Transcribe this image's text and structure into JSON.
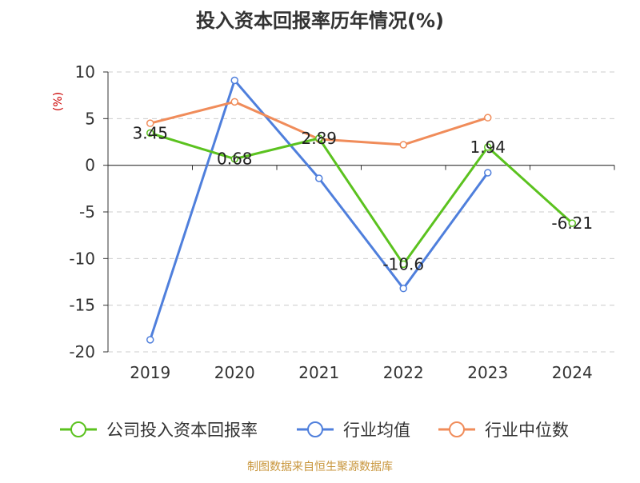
{
  "chart_data": {
    "type": "line",
    "title": "投入资本回报率历年情况(%)",
    "ylabel": "(%)",
    "xlabel": "",
    "ylim": [
      -20,
      10
    ],
    "yticks": [
      10,
      5,
      0,
      -5,
      -10,
      -15,
      -20
    ],
    "categories": [
      "2019",
      "2020",
      "2021",
      "2022",
      "2023",
      "2024"
    ],
    "grid": true,
    "legend_position": "bottom",
    "series": [
      {
        "name": "公司投入资本回报率",
        "color": "#5bc21f",
        "values": [
          3.45,
          0.68,
          2.89,
          -10.6,
          1.94,
          -6.21
        ],
        "labels": [
          "3.45",
          "0.68",
          "2.89",
          "-10.6",
          "1.94",
          "-6.21"
        ]
      },
      {
        "name": "行业均值",
        "color": "#4f7fdc",
        "values": [
          -18.7,
          9.1,
          -1.4,
          -13.2,
          -0.8,
          null
        ]
      },
      {
        "name": "行业中位数",
        "color": "#f08c5a",
        "values": [
          4.5,
          6.8,
          2.8,
          2.2,
          5.1,
          null
        ]
      }
    ],
    "source": "制图数据来自恒生聚源数据库",
    "title_color": "#333333",
    "ylabel_color": "#cc0000",
    "source_color": "#c8963c"
  }
}
